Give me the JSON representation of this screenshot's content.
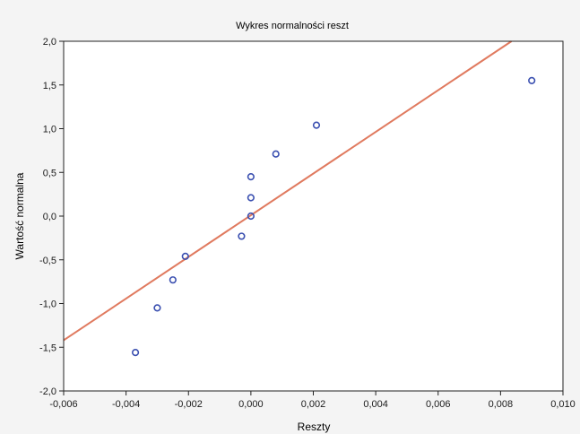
{
  "chart_data": {
    "type": "scatter",
    "title": "Wykres normalności reszt",
    "xlabel": "Reszty",
    "ylabel": "Wartość normalna",
    "xlim": [
      -0.006,
      0.01
    ],
    "ylim": [
      -2.0,
      2.0
    ],
    "grid": false,
    "x_ticks": [
      -0.006,
      -0.004,
      -0.002,
      0.0,
      0.002,
      0.004,
      0.006,
      0.008,
      0.01
    ],
    "x_tick_labels": [
      "-0,006",
      "-0,004",
      "-0,002",
      "0,000",
      "0,002",
      "0,004",
      "0,006",
      "0,008",
      "0,010"
    ],
    "y_ticks": [
      -2.0,
      -1.5,
      -1.0,
      -0.5,
      0.0,
      0.5,
      1.0,
      1.5,
      2.0
    ],
    "y_tick_labels": [
      "-2,0",
      "-1,5",
      "-1,0",
      "-0,5",
      "0,0",
      "0,5",
      "1,0",
      "1,5",
      "2,0"
    ],
    "series": [
      {
        "kind": "points",
        "marker": "circle-open",
        "color": "#3a4fb0",
        "points": [
          {
            "x": -0.0037,
            "y": -1.56
          },
          {
            "x": -0.003,
            "y": -1.05
          },
          {
            "x": -0.0025,
            "y": -0.73
          },
          {
            "x": -0.0021,
            "y": -0.46
          },
          {
            "x": -0.0003,
            "y": -0.23
          },
          {
            "x": 0.0,
            "y": 0.0
          },
          {
            "x": 0.0,
            "y": 0.21
          },
          {
            "x": 0.0,
            "y": 0.45
          },
          {
            "x": 0.0008,
            "y": 0.71
          },
          {
            "x": 0.0021,
            "y": 1.04
          },
          {
            "x": 0.009,
            "y": 1.55
          }
        ]
      },
      {
        "kind": "line",
        "color": "#e07a5f",
        "points": [
          {
            "x": -0.006,
            "y": -1.42
          },
          {
            "x": 0.00835,
            "y": 2.0
          }
        ]
      }
    ]
  }
}
